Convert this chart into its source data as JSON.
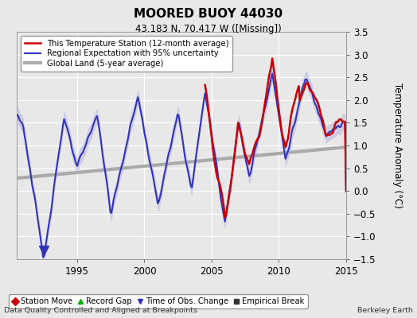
{
  "title": "MOORED BUOY 44030",
  "subtitle": "43.183 N, 70.417 W ([Missing])",
  "ylabel": "Temperature Anomaly (°C)",
  "xlim": [
    1990.5,
    2015.0
  ],
  "ylim": [
    -1.5,
    3.5
  ],
  "yticks": [
    -1.5,
    -1.0,
    -0.5,
    0.0,
    0.5,
    1.0,
    1.5,
    2.0,
    2.5,
    3.0,
    3.5
  ],
  "xticks": [
    1995,
    2000,
    2005,
    2010,
    2015
  ],
  "background_color": "#e8e8e8",
  "plot_bg_color": "#e8e8e8",
  "grid_color": "#ffffff",
  "line_red": "#cc0000",
  "line_blue": "#3333bb",
  "band_blue": "#aaaadd",
  "line_gray": "#aaaaaa",
  "legend_items": [
    {
      "label": "This Temperature Station (12-month average)",
      "color": "#cc0000",
      "lw": 1.8
    },
    {
      "label": "Regional Expectation with 95% uncertainty",
      "color": "#3333bb",
      "lw": 1.5
    },
    {
      "label": "Global Land (5-year average)",
      "color": "#aaaaaa",
      "lw": 3.0
    }
  ],
  "footer_left": "Data Quality Controlled and Aligned at Breakpoints",
  "footer_right": "Berkeley Earth",
  "marker_legend": [
    {
      "marker": "D",
      "color": "#cc0000",
      "label": "Station Move"
    },
    {
      "marker": "^",
      "color": "#00aa00",
      "label": "Record Gap"
    },
    {
      "marker": "v",
      "color": "#3333bb",
      "label": "Time of Obs. Change"
    },
    {
      "marker": "s",
      "color": "#333333",
      "label": "Empirical Break"
    }
  ],
  "obs_change_x": 1992.5,
  "obs_change_y": -1.3
}
